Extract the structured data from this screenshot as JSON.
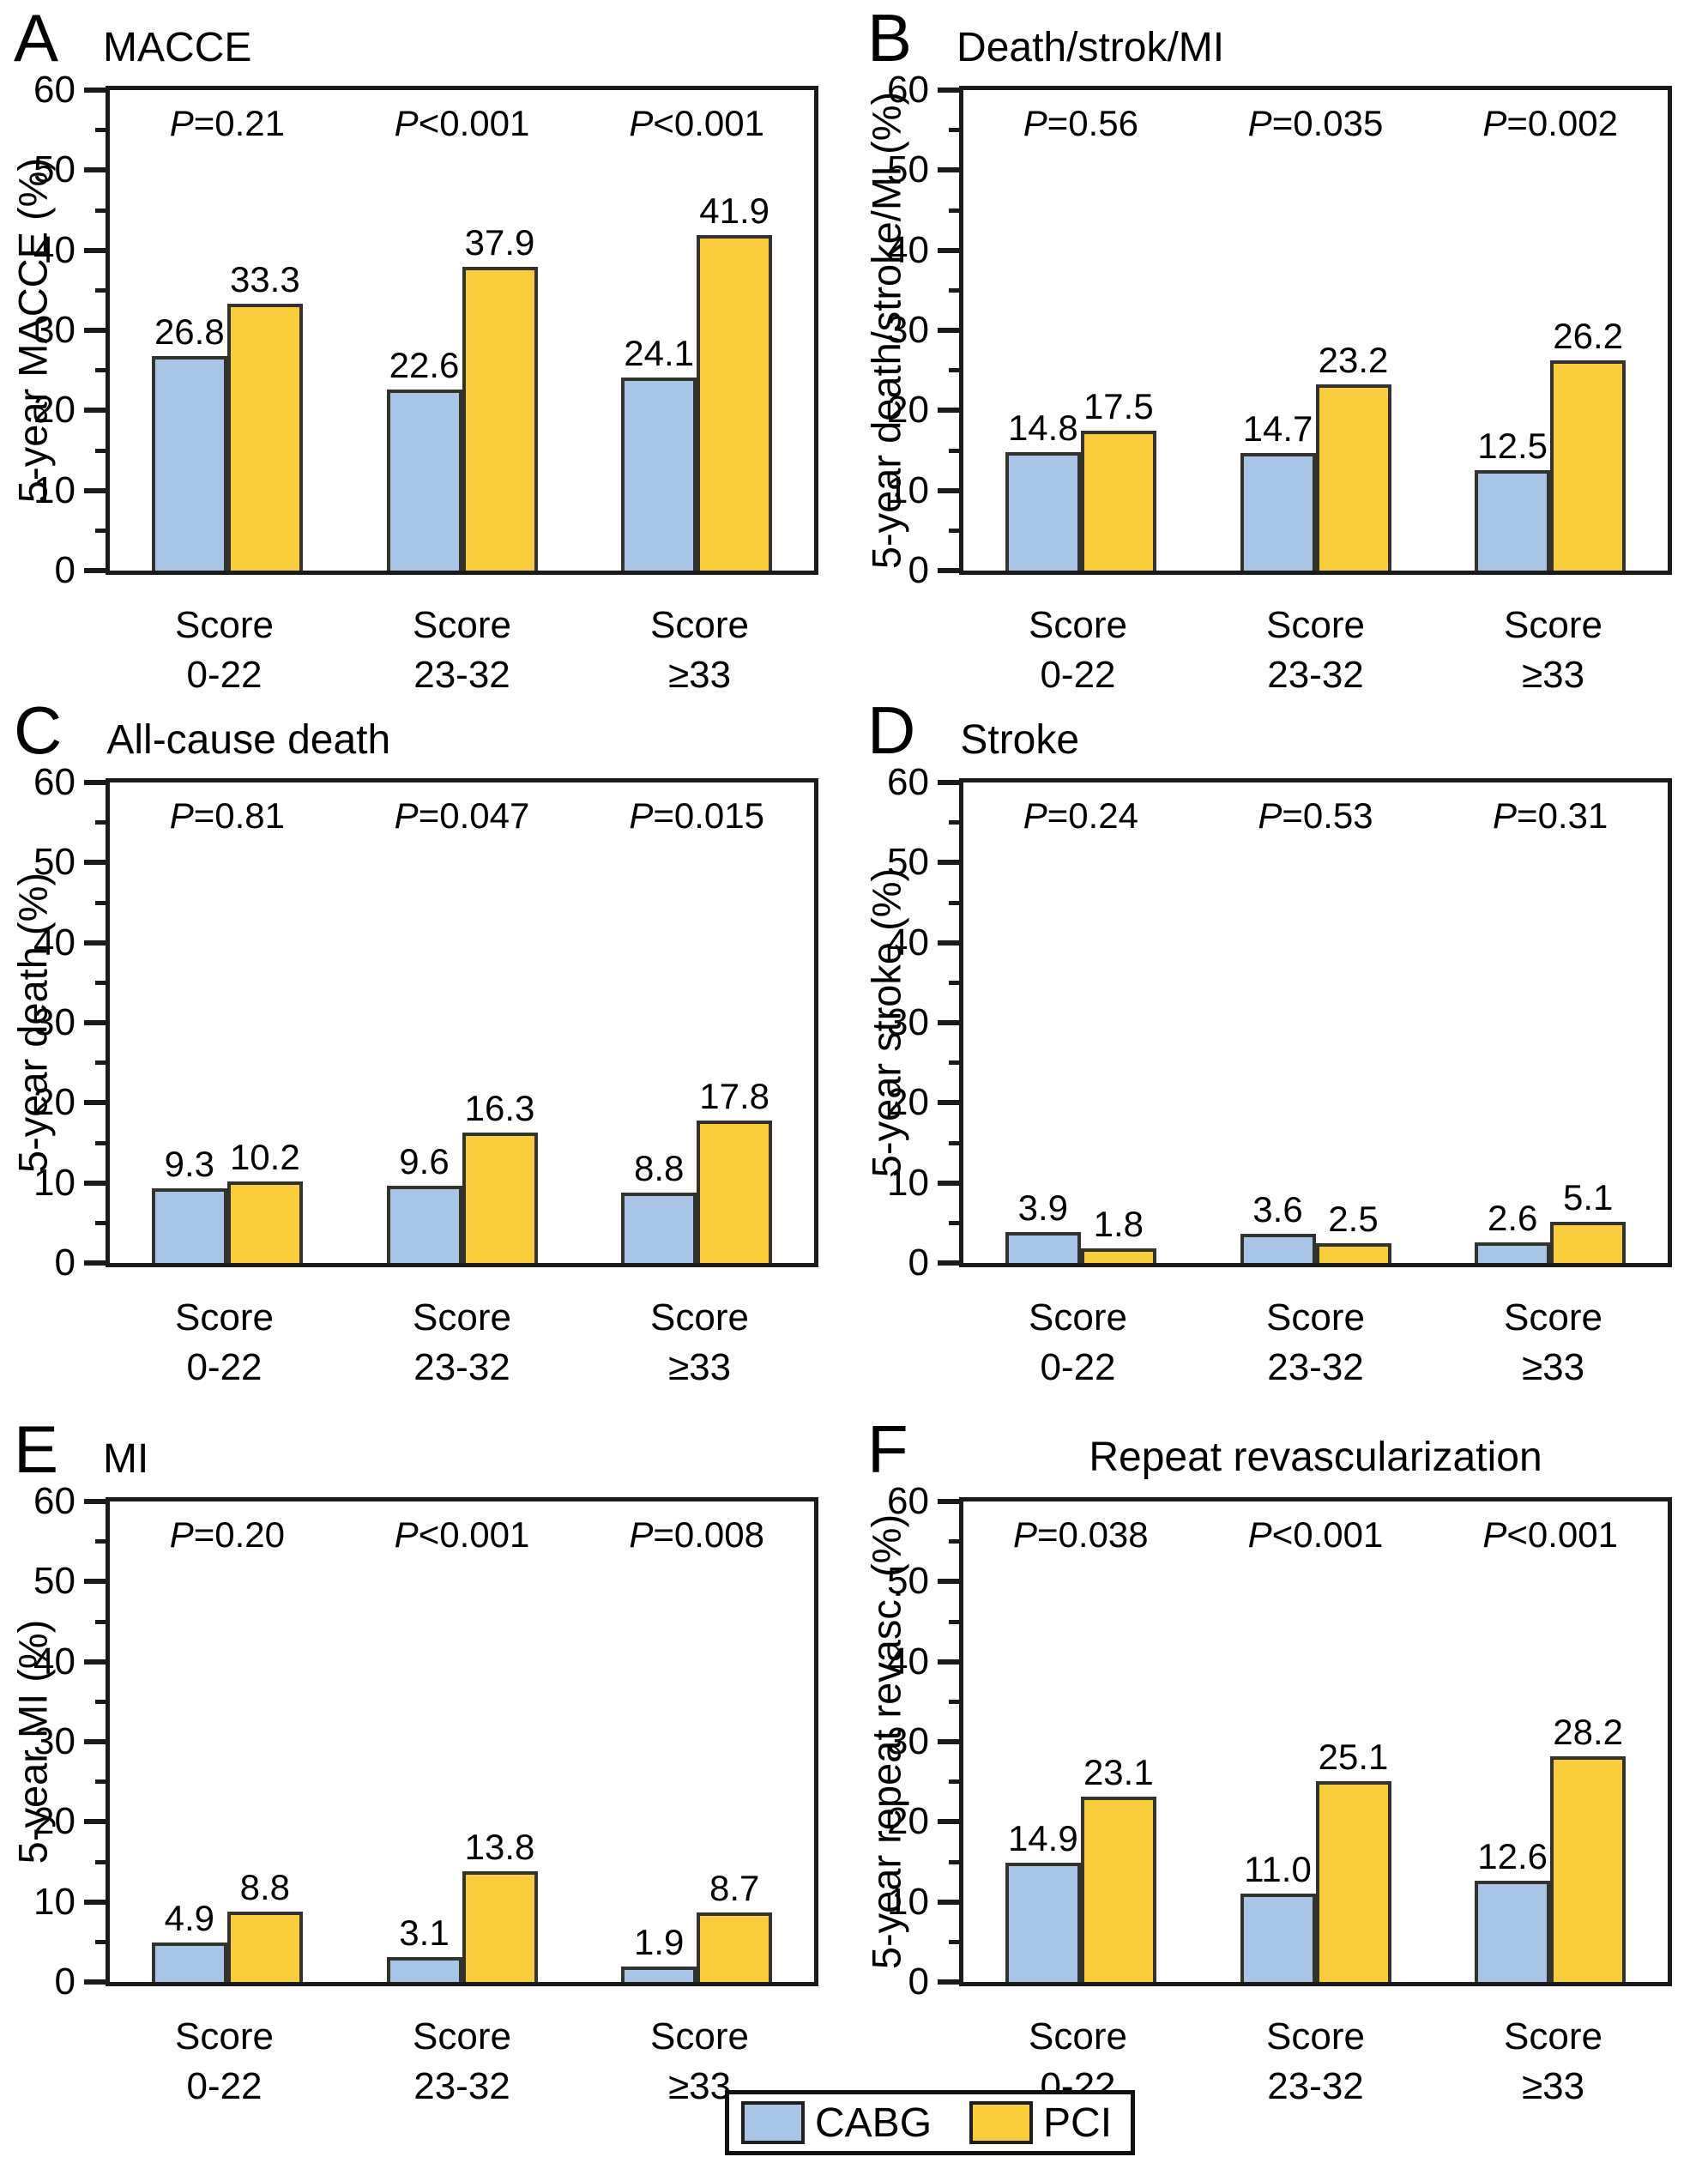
{
  "figure": {
    "type": "multi-panel-bar-figure",
    "panel_letters": [
      "A",
      "B",
      "C",
      "D",
      "E",
      "F"
    ]
  },
  "colors": {
    "cabg": "#a9c5e6",
    "pci": "#f9cc3c",
    "axis": "#1b1b1b",
    "bar_border": "#33332e",
    "text": "#000000"
  },
  "categories": [
    [
      "Score",
      "0-22"
    ],
    [
      "Score",
      "23-32"
    ],
    [
      "Score",
      "≥33"
    ]
  ],
  "legend": {
    "items": [
      {
        "label": "CABG",
        "color": "#a9c5e6"
      },
      {
        "label": "PCI",
        "color": "#f9cc3c"
      }
    ]
  },
  "chart_data": [
    {
      "id": "A",
      "type": "bar",
      "title": "MACCE",
      "ylabel": "5-year MACCE (%)",
      "ylim": [
        0,
        60
      ],
      "ytick_step": 10,
      "p_values": [
        "P=0.21",
        "P<0.001",
        "P<0.001"
      ],
      "series": [
        {
          "name": "CABG",
          "values": [
            26.8,
            22.6,
            24.1
          ]
        },
        {
          "name": "PCI",
          "values": [
            33.3,
            37.9,
            41.9
          ]
        }
      ]
    },
    {
      "id": "B",
      "type": "bar",
      "title": "Death/strok/MI",
      "ylabel": "5-year death/stroke/MI (%)",
      "ylim": [
        0,
        60
      ],
      "ytick_step": 10,
      "p_values": [
        "P=0.56",
        "P=0.035",
        "P=0.002"
      ],
      "series": [
        {
          "name": "CABG",
          "values": [
            14.8,
            14.7,
            12.5
          ]
        },
        {
          "name": "PCI",
          "values": [
            17.5,
            23.2,
            26.2
          ]
        }
      ]
    },
    {
      "id": "C",
      "type": "bar",
      "title": "All-cause death",
      "ylabel": "5-year death (%)",
      "ylim": [
        0,
        60
      ],
      "ytick_step": 10,
      "p_values": [
        "P=0.81",
        "P=0.047",
        "P=0.015"
      ],
      "series": [
        {
          "name": "CABG",
          "values": [
            9.3,
            9.6,
            8.8
          ]
        },
        {
          "name": "PCI",
          "values": [
            10.2,
            16.3,
            17.8
          ]
        }
      ]
    },
    {
      "id": "D",
      "type": "bar",
      "title": "Stroke",
      "ylabel": "5-year stroke (%)",
      "ylim": [
        0,
        60
      ],
      "ytick_step": 10,
      "p_values": [
        "P=0.24",
        "P=0.53",
        "P=0.31"
      ],
      "series": [
        {
          "name": "CABG",
          "values": [
            3.9,
            3.6,
            2.6
          ]
        },
        {
          "name": "PCI",
          "values": [
            1.8,
            2.5,
            5.1
          ]
        }
      ]
    },
    {
      "id": "E",
      "type": "bar",
      "title": "MI",
      "ylabel": "5-year MI (%)",
      "ylim": [
        0,
        60
      ],
      "ytick_step": 10,
      "p_values": [
        "P=0.20",
        "P<0.001",
        "P=0.008"
      ],
      "series": [
        {
          "name": "CABG",
          "values": [
            4.9,
            3.1,
            1.9
          ]
        },
        {
          "name": "PCI",
          "values": [
            8.8,
            13.8,
            8.7
          ]
        }
      ]
    },
    {
      "id": "F",
      "type": "bar",
      "title": "Repeat revascularization",
      "ylabel": "5-year repeat revasc. (%)",
      "ylim": [
        0,
        60
      ],
      "ytick_step": 10,
      "p_values": [
        "P=0.038",
        "P<0.001",
        "P<0.001"
      ],
      "series": [
        {
          "name": "CABG",
          "values": [
            14.9,
            11.0,
            12.6
          ]
        },
        {
          "name": "PCI",
          "values": [
            23.1,
            25.1,
            28.2
          ]
        }
      ]
    }
  ]
}
